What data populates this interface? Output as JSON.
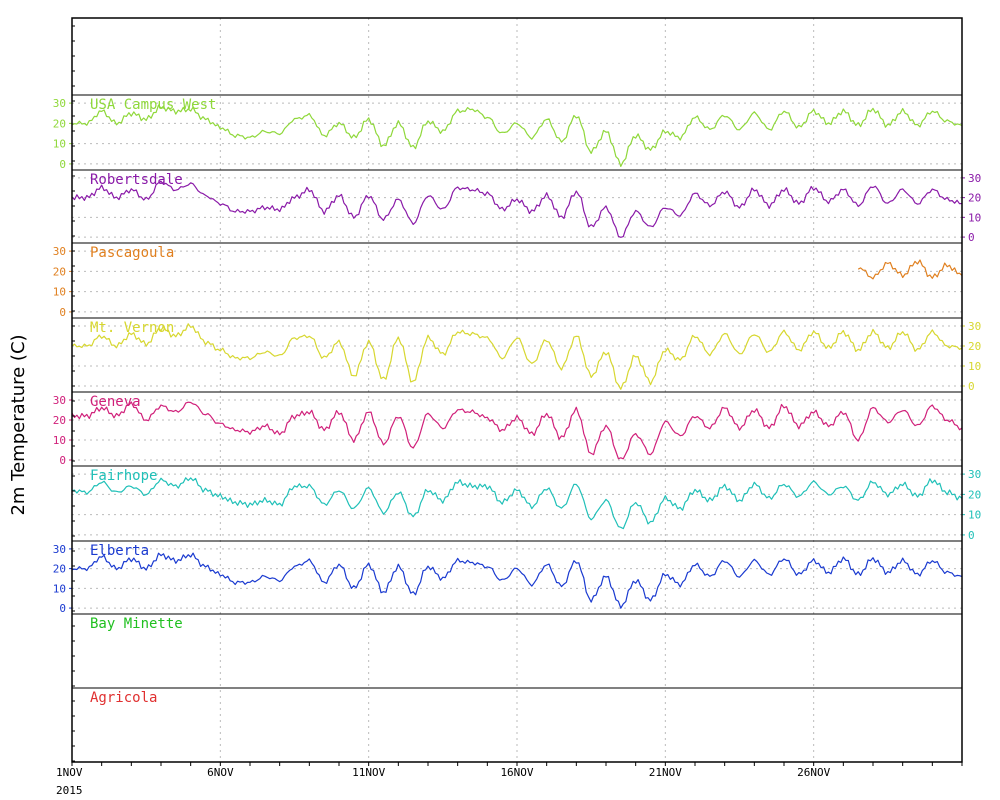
{
  "chart_data": {
    "type": "line",
    "ylabel": "2m Temperature (C)",
    "x_start": "1NOV",
    "x_start_year": "2015",
    "x_end": "1DEC",
    "x_tick_labels": [
      {
        "day": 1,
        "label": "1NOV"
      },
      {
        "day": 6,
        "label": "6NOV"
      },
      {
        "day": 11,
        "label": "11NOV"
      },
      {
        "day": 16,
        "label": "16NOV"
      },
      {
        "day": 21,
        "label": "21NOV"
      },
      {
        "day": 26,
        "label": "26NOV"
      }
    ],
    "x_gridlines_days": [
      6,
      11,
      16,
      21,
      26
    ],
    "ylim": [
      -3,
      34
    ],
    "y_ticks": [
      0,
      10,
      20,
      30
    ],
    "grid": true,
    "series": [
      {
        "name": "USA Campus West",
        "color": "#8fd83a",
        "axis_side": "left",
        "x_start": 1,
        "x_end": 31,
        "values": [
          20,
          20,
          26,
          20,
          25,
          22,
          28,
          26,
          27,
          22,
          18,
          14,
          13,
          16,
          15,
          22,
          24,
          14,
          20,
          13,
          22,
          9,
          20,
          8,
          21,
          16,
          26,
          27,
          23,
          15,
          20,
          13,
          22,
          11,
          24,
          6,
          16,
          0,
          14,
          7,
          16,
          13,
          23,
          17,
          24,
          17,
          25,
          17,
          26,
          18,
          26,
          20,
          26,
          19,
          27,
          19,
          26,
          19,
          26,
          21,
          19
        ]
      },
      {
        "name": "Robertsdale",
        "color": "#8a1aa8",
        "axis_side": "right",
        "x_start": 1,
        "x_end": 31,
        "values": [
          20,
          20,
          25,
          20,
          24,
          19,
          28,
          24,
          27,
          21,
          17,
          13,
          13,
          15,
          14,
          20,
          24,
          13,
          21,
          10,
          21,
          9,
          19,
          7,
          21,
          14,
          25,
          24,
          22,
          14,
          19,
          13,
          21,
          10,
          23,
          5,
          15,
          0,
          13,
          5,
          15,
          11,
          22,
          16,
          23,
          15,
          24,
          16,
          24,
          17,
          25,
          18,
          24,
          16,
          26,
          17,
          24,
          17,
          24,
          19,
          17
        ]
      },
      {
        "name": "Pascagoula",
        "color": "#e08020",
        "axis_side": "left",
        "x_start": 1,
        "x_end": 31,
        "values": [
          null,
          null,
          null,
          null,
          null,
          null,
          null,
          null,
          null,
          null,
          null,
          null,
          null,
          null,
          null,
          null,
          null,
          null,
          null,
          null,
          null,
          null,
          null,
          null,
          null,
          null,
          null,
          null,
          null,
          null,
          null,
          null,
          null,
          null,
          null,
          null,
          null,
          null,
          null,
          null,
          null,
          null,
          null,
          null,
          null,
          null,
          null,
          null,
          null,
          null,
          null,
          null,
          null,
          22,
          17,
          24,
          18,
          25,
          17,
          23,
          18
        ]
      },
      {
        "name": "Mt. Vernon",
        "color": "#d7d730",
        "axis_side": "right",
        "x_start": 1,
        "x_end": 31,
        "values": [
          20,
          20,
          25,
          20,
          26,
          21,
          29,
          25,
          30,
          22,
          18,
          14,
          14,
          17,
          15,
          24,
          25,
          14,
          22,
          5,
          22,
          3,
          24,
          2,
          24,
          16,
          27,
          26,
          24,
          14,
          24,
          11,
          23,
          9,
          25,
          5,
          17,
          -1,
          15,
          2,
          18,
          13,
          25,
          16,
          26,
          16,
          26,
          17,
          27,
          18,
          27,
          19,
          27,
          18,
          27,
          19,
          27,
          18,
          27,
          20,
          19
        ]
      },
      {
        "name": "Geneva",
        "color": "#d0207a",
        "axis_side": "left",
        "x_start": 1,
        "x_end": 31,
        "values": [
          22,
          22,
          26,
          22,
          28,
          20,
          27,
          24,
          29,
          23,
          18,
          15,
          14,
          17,
          13,
          22,
          24,
          15,
          24,
          10,
          24,
          8,
          22,
          6,
          23,
          16,
          25,
          24,
          21,
          15,
          21,
          13,
          23,
          11,
          25,
          3,
          17,
          0,
          13,
          3,
          19,
          12,
          22,
          16,
          26,
          16,
          25,
          16,
          27,
          17,
          24,
          17,
          24,
          10,
          26,
          19,
          25,
          17,
          27,
          20,
          16
        ]
      },
      {
        "name": "Fairhope",
        "color": "#20c0b8",
        "axis_side": "right",
        "x_start": 1,
        "x_end": 31,
        "values": [
          22,
          21,
          26,
          21,
          24,
          20,
          27,
          24,
          28,
          22,
          19,
          16,
          15,
          17,
          15,
          24,
          24,
          15,
          22,
          13,
          23,
          11,
          21,
          9,
          22,
          17,
          26,
          24,
          24,
          16,
          22,
          14,
          23,
          13,
          25,
          8,
          17,
          3,
          16,
          6,
          18,
          13,
          22,
          17,
          24,
          17,
          25,
          18,
          25,
          19,
          26,
          20,
          24,
          17,
          26,
          20,
          25,
          19,
          27,
          21,
          18
        ]
      },
      {
        "name": "Elberta",
        "color": "#1a3ad0",
        "axis_side": "left",
        "x_start": 1,
        "x_end": 31,
        "values": [
          20,
          20,
          26,
          20,
          25,
          20,
          27,
          24,
          27,
          21,
          17,
          13,
          13,
          16,
          14,
          21,
          24,
          13,
          22,
          10,
          22,
          8,
          21,
          7,
          21,
          15,
          24,
          23,
          21,
          14,
          20,
          12,
          22,
          11,
          24,
          4,
          16,
          1,
          14,
          4,
          17,
          12,
          22,
          16,
          24,
          16,
          24,
          17,
          25,
          17,
          24,
          18,
          25,
          17,
          25,
          18,
          24,
          17,
          24,
          18,
          16
        ]
      },
      {
        "name": "Bay Minette",
        "color": "#20c020",
        "axis_side": "left",
        "x_start": 1,
        "x_end": 31,
        "values": []
      },
      {
        "name": "Agricola",
        "color": "#e03030",
        "axis_side": "left",
        "x_start": 1,
        "x_end": 31,
        "values": []
      }
    ]
  }
}
